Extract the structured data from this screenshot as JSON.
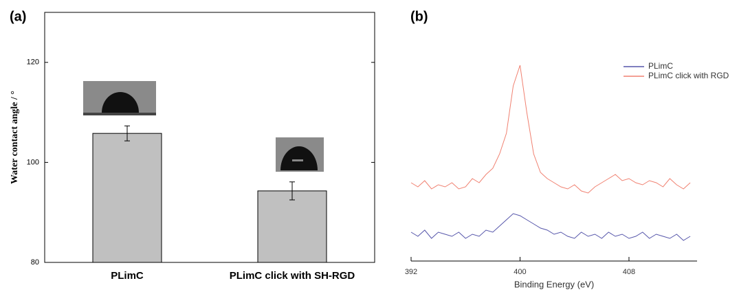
{
  "chart_data": [
    {
      "type": "bar",
      "title": "(a)",
      "y_label": "Water contact angle / °",
      "categories": [
        "PLimC",
        "PLimC click with SH-RGD"
      ],
      "values": [
        105.8,
        94.3
      ],
      "errors": [
        1.5,
        1.8
      ],
      "color": "#c0c0c0",
      "ylim": [
        80,
        130
      ],
      "yticks": [
        80,
        100,
        120
      ]
    },
    {
      "type": "line",
      "title": "(b)",
      "x_label": "Binding Energy (eV)",
      "x": [
        392,
        392.5,
        393,
        393.5,
        394,
        394.5,
        395,
        395.5,
        396,
        396.5,
        397,
        397.5,
        398,
        398.5,
        399,
        399.5,
        400,
        400.5,
        401,
        401.5,
        402,
        402.5,
        403,
        403.5,
        404,
        404.5,
        405,
        405.5,
        406,
        406.5,
        407,
        407.5,
        408,
        408.5,
        409,
        409.5,
        410,
        410.5,
        411,
        411.5,
        412,
        412.5
      ],
      "series": [
        {
          "name": "PLimC",
          "color": "#5555aa",
          "values": [
            14,
            12,
            15,
            11,
            14,
            13,
            12,
            14,
            11,
            13,
            12,
            15,
            14,
            17,
            20,
            23,
            22,
            20,
            18,
            16,
            15,
            13,
            14,
            12,
            11,
            14,
            12,
            13,
            11,
            14,
            12,
            13,
            11,
            12,
            14,
            11,
            13,
            12,
            11,
            13,
            10,
            12
          ]
        },
        {
          "name": "PLimC click with RGD",
          "color": "#f08070",
          "values": [
            38,
            36,
            39,
            35,
            37,
            36,
            38,
            35,
            36,
            40,
            38,
            42,
            45,
            52,
            62,
            85,
            95,
            72,
            52,
            43,
            40,
            38,
            36,
            35,
            37,
            34,
            33,
            36,
            38,
            40,
            42,
            39,
            40,
            38,
            37,
            39,
            38,
            36,
            40,
            37,
            35,
            38
          ]
        }
      ],
      "xlim": [
        392,
        413
      ],
      "xticks": [
        392,
        400,
        408
      ],
      "ylim": [
        0,
        100
      ],
      "legend": "upper right"
    }
  ]
}
